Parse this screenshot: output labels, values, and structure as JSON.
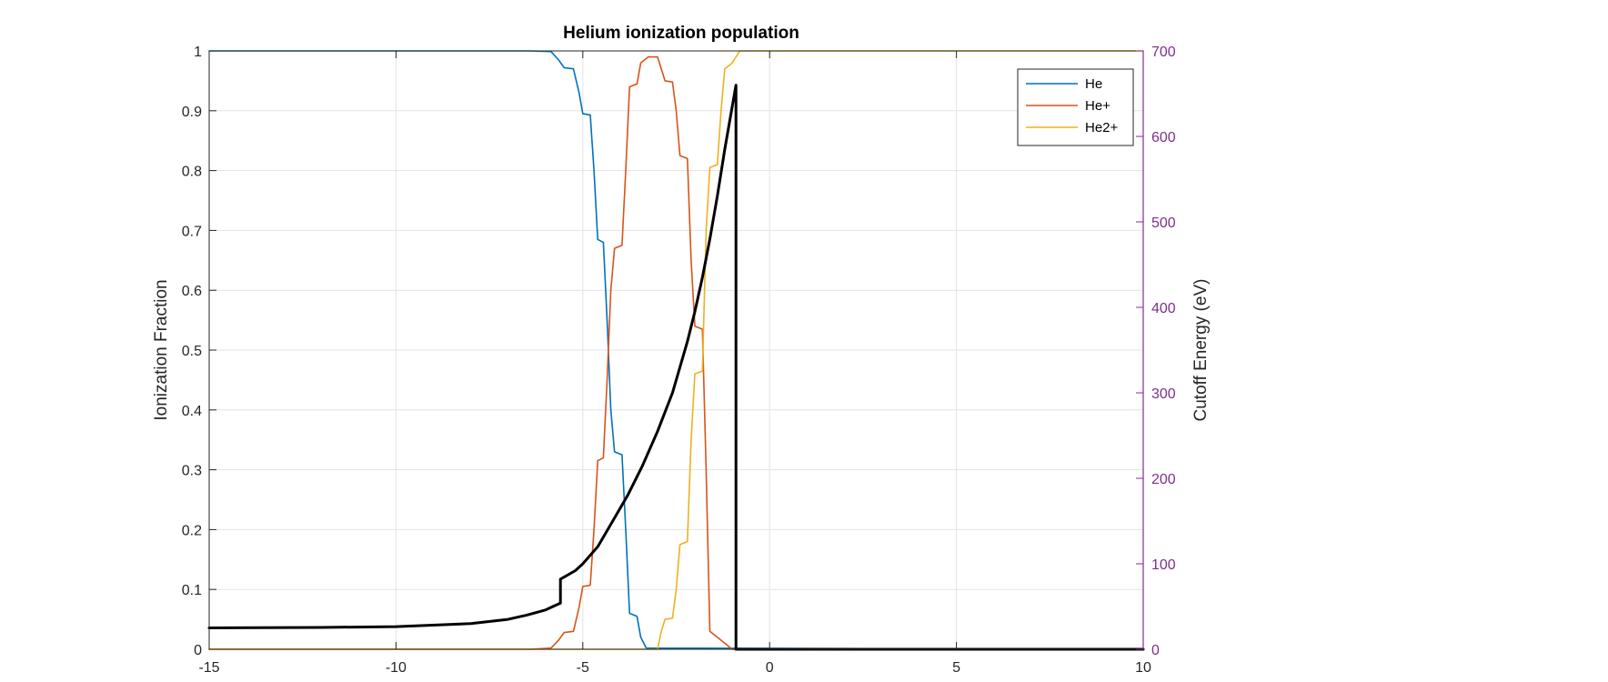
{
  "chart_data": {
    "type": "line",
    "title": "Helium ionization population",
    "xlabel": "",
    "ylabel": "Ionization Fraction",
    "y2label": "Cutoff Energy (eV)",
    "xlim": [
      -15,
      10
    ],
    "ylim": [
      0,
      1
    ],
    "y2lim": [
      0,
      700
    ],
    "x_ticks": [
      -15,
      -10,
      -5,
      0,
      5,
      10
    ],
    "y_ticks": [
      0,
      0.1,
      0.2,
      0.3,
      0.4,
      0.5,
      0.6,
      0.7,
      0.8,
      0.9,
      1
    ],
    "y2_ticks": [
      0,
      100,
      200,
      300,
      400,
      500,
      600,
      700
    ],
    "grid": true,
    "legend_position": "top-right",
    "colors": {
      "right_axis": "#7E2F8E",
      "cutoff": "#000000"
    },
    "series": [
      {
        "name": "He",
        "axis": "left",
        "color": "#0072BD",
        "points": [
          [
            -15,
            1.0
          ],
          [
            -6.4,
            1.0
          ],
          [
            -5.85,
            0.999
          ],
          [
            -5.65,
            0.985
          ],
          [
            -5.5,
            0.972
          ],
          [
            -5.25,
            0.97
          ],
          [
            -5.1,
            0.93
          ],
          [
            -5.0,
            0.895
          ],
          [
            -4.8,
            0.893
          ],
          [
            -4.7,
            0.8
          ],
          [
            -4.6,
            0.685
          ],
          [
            -4.45,
            0.68
          ],
          [
            -4.35,
            0.55
          ],
          [
            -4.25,
            0.4
          ],
          [
            -4.15,
            0.33
          ],
          [
            -3.95,
            0.325
          ],
          [
            -3.85,
            0.2
          ],
          [
            -3.75,
            0.06
          ],
          [
            -3.55,
            0.055
          ],
          [
            -3.45,
            0.02
          ],
          [
            -3.3,
            0.002
          ],
          [
            10,
            0.0
          ]
        ]
      },
      {
        "name": "He+",
        "axis": "left",
        "color": "#D95319",
        "points": [
          [
            -15,
            0.0
          ],
          [
            -6.4,
            0.0
          ],
          [
            -5.85,
            0.002
          ],
          [
            -5.65,
            0.015
          ],
          [
            -5.5,
            0.028
          ],
          [
            -5.25,
            0.03
          ],
          [
            -5.1,
            0.07
          ],
          [
            -5.0,
            0.105
          ],
          [
            -4.8,
            0.107
          ],
          [
            -4.7,
            0.2
          ],
          [
            -4.6,
            0.315
          ],
          [
            -4.45,
            0.32
          ],
          [
            -4.35,
            0.45
          ],
          [
            -4.25,
            0.6
          ],
          [
            -4.15,
            0.67
          ],
          [
            -3.95,
            0.675
          ],
          [
            -3.85,
            0.8
          ],
          [
            -3.75,
            0.94
          ],
          [
            -3.55,
            0.945
          ],
          [
            -3.45,
            0.98
          ],
          [
            -3.25,
            0.99
          ],
          [
            -3.0,
            0.99
          ],
          [
            -2.9,
            0.97
          ],
          [
            -2.8,
            0.95
          ],
          [
            -2.6,
            0.948
          ],
          [
            -2.5,
            0.9
          ],
          [
            -2.4,
            0.825
          ],
          [
            -2.2,
            0.82
          ],
          [
            -2.1,
            0.65
          ],
          [
            -2.0,
            0.54
          ],
          [
            -1.8,
            0.535
          ],
          [
            -1.7,
            0.3
          ],
          [
            -1.6,
            0.03
          ],
          [
            -1.4,
            0.02
          ],
          [
            -1.2,
            0.01
          ],
          [
            -1.0,
            0.0
          ],
          [
            10,
            0.0
          ]
        ]
      },
      {
        "name": "He2+",
        "axis": "left",
        "color": "#EDB120",
        "points": [
          [
            -15,
            0.0
          ],
          [
            -3.2,
            0.0
          ],
          [
            -3.0,
            0.0
          ],
          [
            -2.9,
            0.03
          ],
          [
            -2.8,
            0.05
          ],
          [
            -2.6,
            0.052
          ],
          [
            -2.5,
            0.1
          ],
          [
            -2.4,
            0.175
          ],
          [
            -2.2,
            0.18
          ],
          [
            -2.1,
            0.35
          ],
          [
            -2.0,
            0.46
          ],
          [
            -1.8,
            0.465
          ],
          [
            -1.7,
            0.7
          ],
          [
            -1.6,
            0.805
          ],
          [
            -1.4,
            0.81
          ],
          [
            -1.3,
            0.9
          ],
          [
            -1.2,
            0.97
          ],
          [
            -1.0,
            0.98
          ],
          [
            -0.8,
            1.0
          ],
          [
            10,
            1.0
          ]
        ]
      },
      {
        "name": "",
        "axis": "right",
        "color": "#000000",
        "points": [
          [
            -15,
            25
          ],
          [
            -12,
            25.5
          ],
          [
            -10,
            26.5
          ],
          [
            -8,
            30
          ],
          [
            -7,
            35
          ],
          [
            -6.5,
            40
          ],
          [
            -6,
            46
          ],
          [
            -5.8,
            50
          ],
          [
            -5.6,
            54
          ],
          [
            -5.6,
            82
          ],
          [
            -5.2,
            92
          ],
          [
            -5.0,
            100
          ],
          [
            -4.6,
            120
          ],
          [
            -4.2,
            150
          ],
          [
            -3.8,
            180
          ],
          [
            -3.4,
            215
          ],
          [
            -3.0,
            255
          ],
          [
            -2.6,
            300
          ],
          [
            -2.2,
            360
          ],
          [
            -2.0,
            395
          ],
          [
            -1.8,
            435
          ],
          [
            -1.6,
            480
          ],
          [
            -1.4,
            530
          ],
          [
            -1.2,
            585
          ],
          [
            -0.9,
            660
          ],
          [
            -0.9,
            0
          ],
          [
            10,
            0
          ]
        ]
      }
    ]
  }
}
